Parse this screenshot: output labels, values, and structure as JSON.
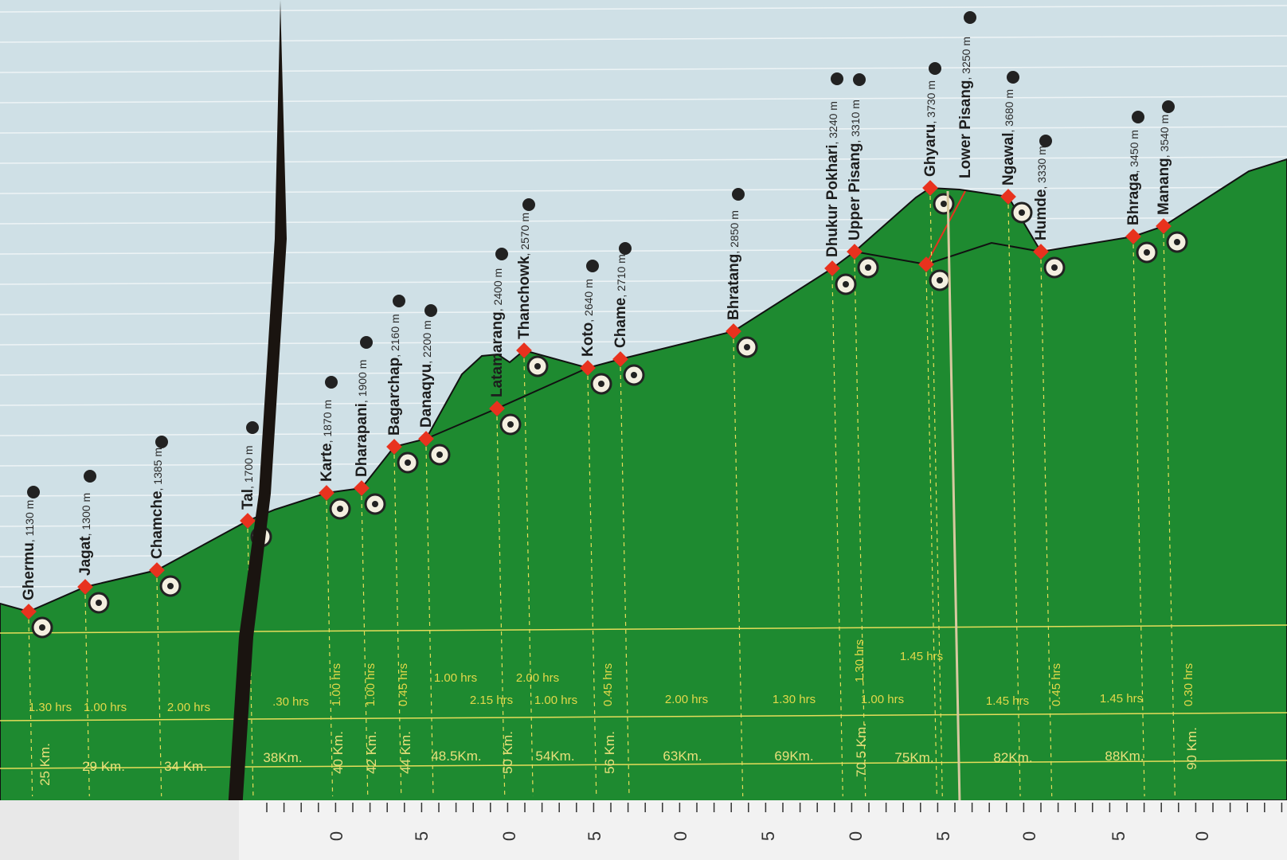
{
  "chart_data": {
    "type": "area",
    "title": "",
    "stations": [
      {
        "name": "Ghermu",
        "elev": "1130 m",
        "m": 1130
      },
      {
        "name": "Jagat",
        "elev": "1300 m",
        "m": 1300
      },
      {
        "name": "Chamche",
        "elev": "1385 m",
        "m": 1385
      },
      {
        "name": "Tal",
        "elev": "1700 m",
        "m": 1700
      },
      {
        "name": "Karte",
        "elev": "1870 m",
        "m": 1870
      },
      {
        "name": "Dharapani",
        "elev": "1900 m",
        "m": 1900
      },
      {
        "name": "Bagarchap",
        "elev": "2160 m",
        "m": 2160
      },
      {
        "name": "Danaqyu",
        "elev": "2200 m",
        "m": 2200
      },
      {
        "name": "Latamarang",
        "elev": "2400 m",
        "m": 2400
      },
      {
        "name": "Thanchowk",
        "elev": "2570 m",
        "m": 2570
      },
      {
        "name": "Koto",
        "elev": "2640 m",
        "m": 2640
      },
      {
        "name": "Chame",
        "elev": "2710 m",
        "m": 2710
      },
      {
        "name": "Bhratang",
        "elev": "2850 m",
        "m": 2850
      },
      {
        "name": "Dhukur Pokhari",
        "elev": "3240 m",
        "m": 3240
      },
      {
        "name": "Upper Pisang",
        "elev": "3310 m",
        "m": 3310
      },
      {
        "name": "Ghyaru",
        "elev": "3730 m",
        "m": 3730
      },
      {
        "name": "Lower Pisang",
        "elev": "3250 m",
        "m": 3250
      },
      {
        "name": "Ngawal",
        "elev": "3680 m",
        "m": 3680
      },
      {
        "name": "Humde",
        "elev": "3330 m",
        "m": 3330
      },
      {
        "name": "Bhraga",
        "elev": "3450 m",
        "m": 3450
      },
      {
        "name": "Manang",
        "elev": "3540 m",
        "m": 3540
      }
    ],
    "durations": [
      "1.30 hrs",
      "1.00 hrs",
      "2.00 hrs",
      ".30 hrs",
      "1.00 hrs",
      "1.00 hrs",
      "0.45 hrs",
      "1.00 hrs",
      "2.00 hrs",
      "2.15 hrs",
      "1.00 hrs",
      "0.45 hrs",
      "2.00 hrs",
      "1.30 hrs",
      "1.30 hrs",
      "1.00 hrs",
      "1.45 hrs",
      "1.45 hrs",
      "0.45 hrs",
      "1.45 hrs",
      "0.30 hrs"
    ],
    "distances": [
      "25 Km.",
      "29 Km.",
      "34 Km.",
      "38Km.",
      "40 Km.",
      "42 Km.",
      "44 Km.",
      "48.5Km.",
      "50 Km.",
      "54Km.",
      "56 Km.",
      "63Km.",
      "69Km.",
      "70.5 Km.",
      "75Km.",
      "82Km.",
      "88Km.",
      "90 Km."
    ],
    "ruler_labels": [
      "0",
      "5",
      "0",
      "5",
      "0",
      "5",
      "0",
      "5",
      "0",
      "5",
      "0"
    ],
    "colors": {
      "terrain": "#1e8a30",
      "sky": "#cfe0e6",
      "marker": "#e8321e",
      "grid": "#e6dd5a"
    }
  }
}
